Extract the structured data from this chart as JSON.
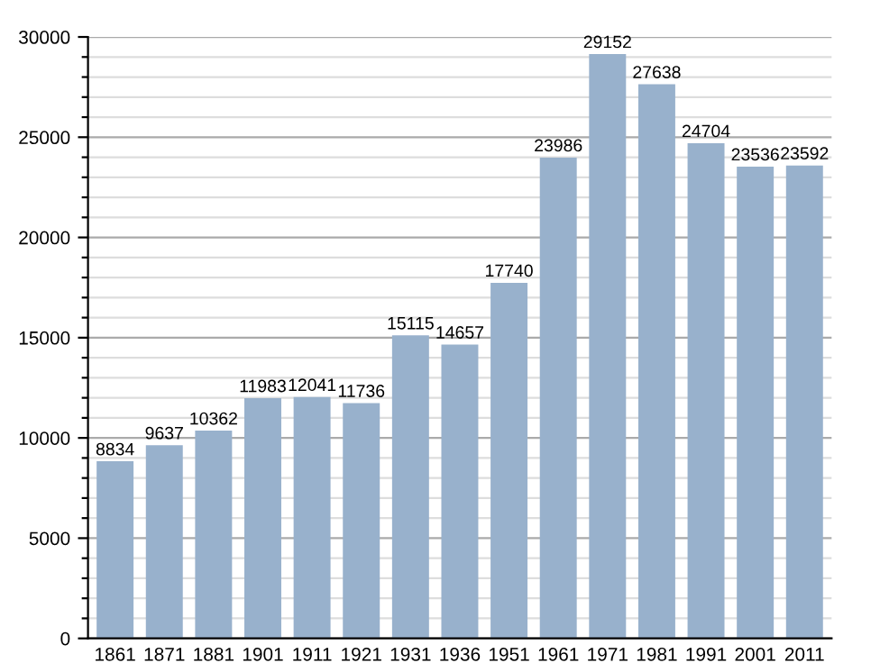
{
  "chart_data": {
    "type": "bar",
    "categories": [
      "1861",
      "1871",
      "1881",
      "1901",
      "1911",
      "1921",
      "1931",
      "1936",
      "1951",
      "1961",
      "1971",
      "1981",
      "1991",
      "2001",
      "2011"
    ],
    "values": [
      8834,
      9637,
      10362,
      11983,
      12041,
      11736,
      15115,
      14657,
      17740,
      23986,
      29152,
      27638,
      24704,
      23536,
      23592
    ],
    "color": "#98b1cc",
    "data_labels": true,
    "ylim": [
      0,
      30000
    ],
    "yticks": [
      0,
      {
        "value": 1000,
        "label": null
      },
      {
        "value": 2000,
        "label": null
      },
      {
        "value": 3000,
        "label": null
      },
      {
        "value": 4000,
        "label": null
      },
      5000,
      {
        "value": 6000,
        "label": null
      },
      {
        "value": 7000,
        "label": null
      },
      {
        "value": 8000,
        "label": null
      },
      {
        "value": 9000,
        "label": null
      },
      10000,
      {
        "value": 11000,
        "label": null
      },
      {
        "value": 12000,
        "label": null
      },
      {
        "value": 13000,
        "label": null
      },
      {
        "value": 14000,
        "label": null
      },
      15000,
      {
        "value": 16000,
        "label": null
      },
      {
        "value": 17000,
        "label": null
      },
      {
        "value": 18000,
        "label": null
      },
      {
        "value": 19000,
        "label": null
      },
      20000,
      {
        "value": 21000,
        "label": null
      },
      {
        "value": 22000,
        "label": null
      },
      {
        "value": 23000,
        "label": null
      },
      {
        "value": 24000,
        "label": null
      },
      25000,
      {
        "value": 26000,
        "label": null
      },
      {
        "value": 27000,
        "label": null
      },
      {
        "value": 28000,
        "label": null
      },
      {
        "value": 29000,
        "label": null
      },
      30000
    ],
    "grid": "y"
  }
}
